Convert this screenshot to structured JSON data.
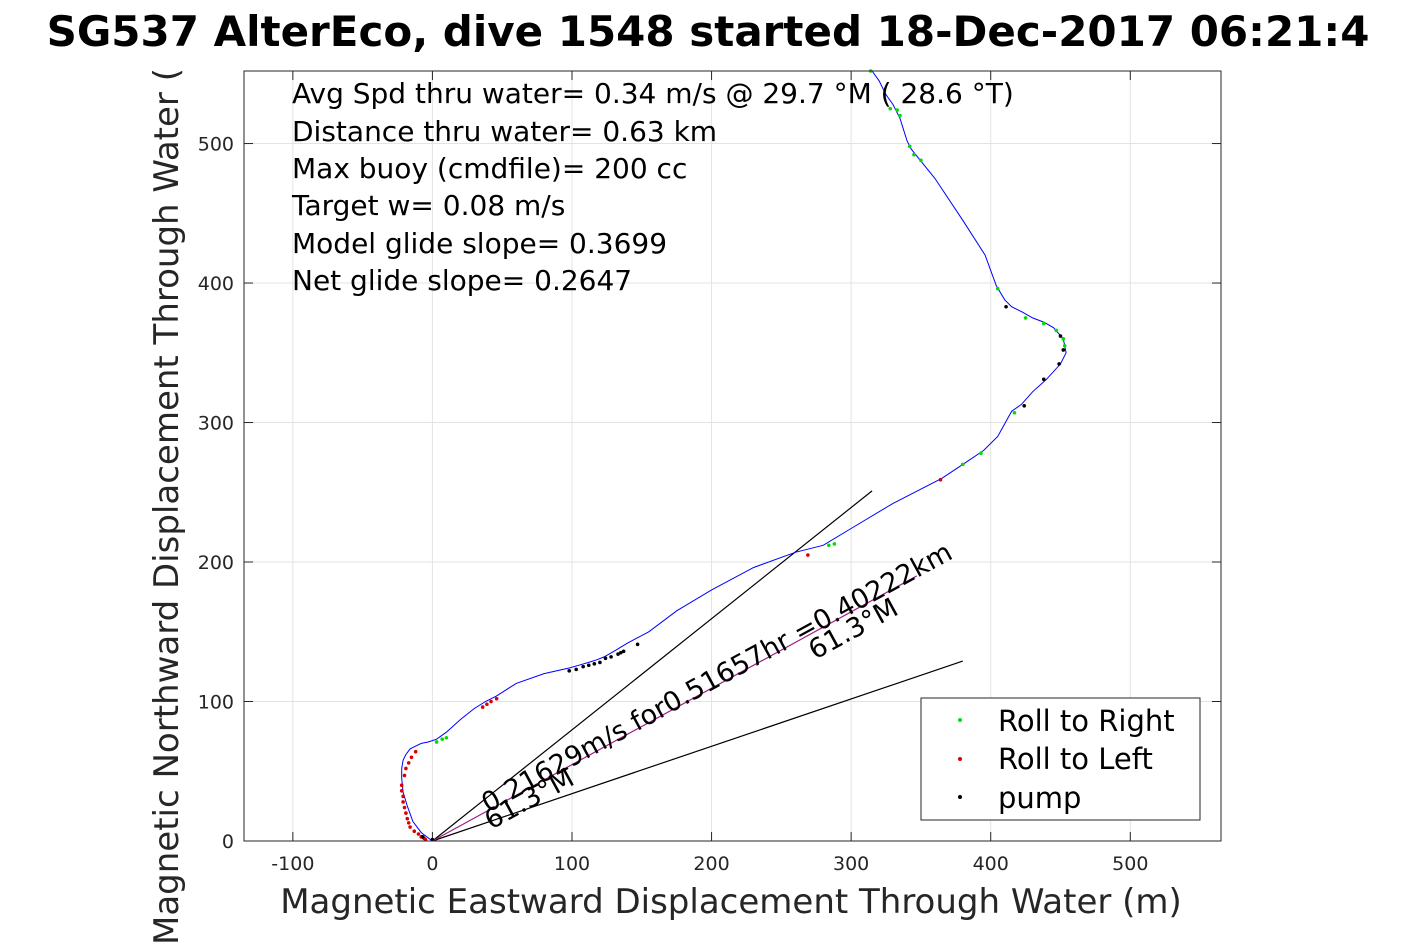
{
  "chart_data": {
    "type": "line",
    "title": "SG537 AlterEco, dive 1548 started 18-Dec-2017 06:21:4",
    "xlabel": "Magnetic Eastward Displacement Through Water (m)",
    "ylabel": "Magnetic Northward Displacement Through Water (",
    "xlim": [
      -135,
      565
    ],
    "ylim": [
      0,
      552
    ],
    "xticks": [
      -100,
      0,
      100,
      200,
      300,
      400,
      500
    ],
    "xtick_labels": [
      "-100",
      "0",
      "100",
      "200",
      "300",
      "400",
      "500"
    ],
    "yticks": [
      0,
      100,
      200,
      300,
      400,
      500
    ],
    "ytick_labels": [
      "0",
      "100",
      "200",
      "300",
      "400",
      "500"
    ],
    "grid": true,
    "info_lines": [
      "Avg Spd thru water=  0.34 m/s @  29.7 °M ( 28.6 °T)",
      "Distance thru water=  0.63 km",
      "Max buoy (cmdfile)= 200 cc",
      "Target w= 0.08 m/s",
      "Model glide slope= 0.3699",
      "Net glide slope= 0.2647"
    ],
    "track": {
      "color": "#0000ff",
      "x": [
        0,
        -8,
        -14,
        -18,
        -21,
        -22,
        -22,
        -21,
        -19,
        -16,
        -12,
        -8,
        -3,
        3,
        10,
        20,
        30,
        38,
        46,
        60,
        80,
        98,
        105,
        112,
        118,
        123,
        130,
        140,
        155,
        175,
        200,
        230,
        260,
        280,
        300,
        330,
        365,
        380,
        395,
        405,
        415,
        422,
        430,
        440,
        450,
        454,
        452,
        445,
        438,
        430,
        423,
        415,
        410,
        404,
        396,
        380,
        360,
        343,
        340,
        335,
        330,
        325,
        320,
        315
      ],
      "y": [
        0,
        6,
        14,
        25,
        35,
        45,
        52,
        58,
        62,
        66,
        68,
        70,
        71,
        73,
        78,
        87,
        95,
        100,
        104,
        113,
        120,
        124,
        126,
        128,
        130,
        132,
        136,
        142,
        150,
        165,
        180,
        196,
        207,
        212,
        224,
        242,
        260,
        270,
        280,
        290,
        308,
        313,
        322,
        331,
        342,
        350,
        360,
        368,
        372,
        375,
        379,
        383,
        388,
        398,
        420,
        445,
        475,
        496,
        502,
        518,
        528,
        535,
        545,
        552
      ]
    },
    "vectors": [
      {
        "name": "glide-vector",
        "x": [
          0,
          315
        ],
        "y": [
          0,
          251
        ],
        "color": "#000000"
      },
      {
        "name": "current-vector",
        "x": [
          0,
          380
        ],
        "y": [
          0,
          129
        ],
        "color": "#000000"
      },
      {
        "name": "net-vector",
        "x": [
          0,
          347
        ],
        "y": [
          0,
          190
        ],
        "color": "#a0208a"
      }
    ],
    "series": [
      {
        "name": "Roll to Right",
        "color": "#00dd00",
        "x": [
          3,
          7,
          10,
          314,
          328,
          333,
          335,
          342,
          345,
          350,
          405,
          425,
          438,
          447,
          452,
          453,
          417,
          393,
          380,
          284,
          288
        ],
        "y": [
          71,
          73,
          74,
          552,
          525,
          524,
          520,
          498,
          492,
          488,
          396,
          375,
          371,
          366,
          360,
          355,
          307,
          278,
          270,
          212,
          213
        ]
      },
      {
        "name": "Roll to Left",
        "color": "#dd0000",
        "x": [
          -22,
          -22,
          -21,
          -21,
          -20,
          -19,
          -18,
          -17,
          -16,
          -13,
          -10,
          -8,
          -6,
          -5,
          -20,
          -19,
          -17,
          -15,
          -12,
          36,
          39,
          42,
          46,
          269,
          364
        ],
        "y": [
          40,
          36,
          32,
          28,
          24,
          20,
          16,
          13,
          10,
          7,
          5,
          3,
          2,
          1,
          47,
          52,
          56,
          60,
          64,
          96,
          98,
          100,
          102,
          205,
          259
        ]
      },
      {
        "name": "pump",
        "color": "#000000",
        "x": [
          -7,
          0,
          98,
          103,
          108,
          112,
          116,
          120,
          124,
          128,
          133,
          135,
          137,
          147,
          411,
          424,
          438,
          449,
          452,
          450
        ],
        "y": [
          3,
          1,
          122,
          123,
          125,
          126,
          127,
          128,
          131,
          132,
          134,
          135,
          136,
          141,
          383,
          312,
          331,
          342,
          352,
          362
        ]
      }
    ],
    "annotations": [
      {
        "name": "glide-speed-annotation",
        "text": "0.21629m/s for0.51657hr =0.40222km"
      },
      {
        "name": "heading-annotation-near",
        "text": "61.3°M"
      },
      {
        "name": "heading-annotation-far",
        "text": "61.3°M"
      }
    ],
    "legend": {
      "placement": "bottom-right",
      "entries": [
        "Roll to Right",
        "Roll to Left",
        "pump"
      ]
    }
  }
}
